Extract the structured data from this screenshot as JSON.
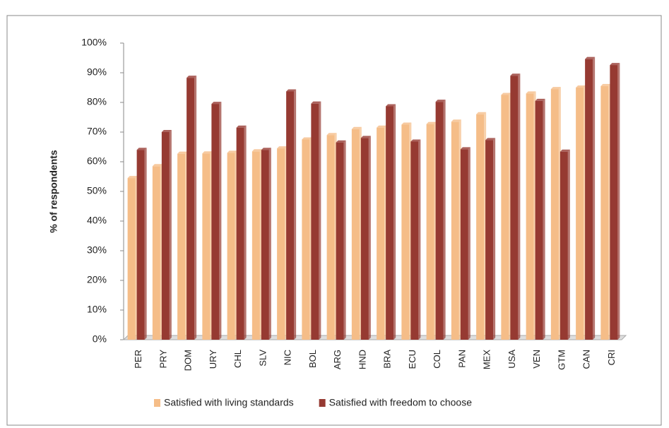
{
  "chart_data": {
    "type": "bar",
    "ylabel": "% of respondents",
    "categories": [
      "PER",
      "PRY",
      "DOM",
      "URY",
      "CHL",
      "SLV",
      "NIC",
      "BOL",
      "ARG",
      "HND",
      "BRA",
      "ECU",
      "COL",
      "PAN",
      "MEX",
      "USA",
      "VEN",
      "GTM",
      "CAN",
      "CRI"
    ],
    "series": [
      {
        "name": "Satisfied with living standards",
        "color": "#f5bd88",
        "values": [
          54.5,
          58.5,
          62.7,
          62.8,
          63,
          63.5,
          64.5,
          67.5,
          69,
          71,
          71.5,
          72.5,
          72.7,
          73.5,
          76,
          82.5,
          83,
          84.5,
          85,
          85.5
        ]
      },
      {
        "name": "Satisfied with freedom to choose",
        "color": "#963a32",
        "values": [
          64,
          70,
          88.3,
          79.5,
          71.5,
          64,
          83.7,
          79.6,
          66.5,
          68,
          78.7,
          66.8,
          80.2,
          64.2,
          67.3,
          89,
          80.5,
          63.4,
          94.6,
          92.6
        ]
      }
    ],
    "ylim": [
      0,
      100
    ],
    "yticks": [
      {
        "value": 0,
        "label": "0%"
      },
      {
        "value": 10,
        "label": "10%"
      },
      {
        "value": 20,
        "label": "20%"
      },
      {
        "value": 30,
        "label": "30%"
      },
      {
        "value": 40,
        "label": "40%"
      },
      {
        "value": 50,
        "label": "50%"
      },
      {
        "value": 60,
        "label": "60%"
      },
      {
        "value": 70,
        "label": "70%"
      },
      {
        "value": 80,
        "label": "80%"
      },
      {
        "value": 90,
        "label": "90%"
      },
      {
        "value": 100,
        "label": "100%"
      }
    ],
    "legend": "bottom"
  }
}
